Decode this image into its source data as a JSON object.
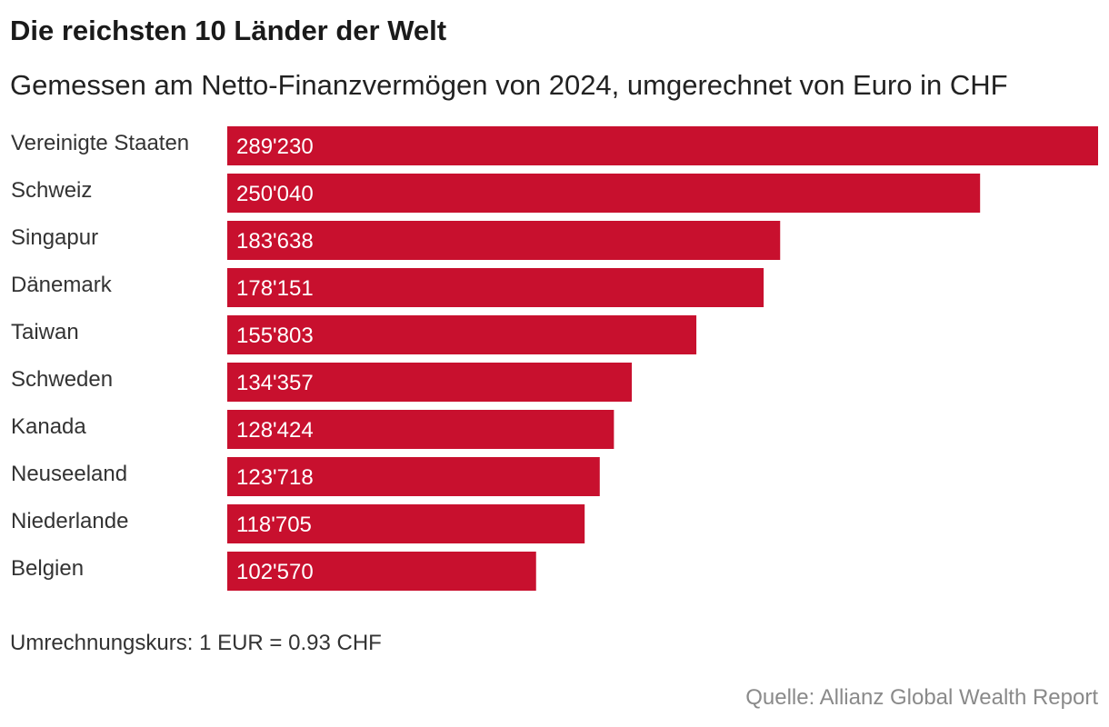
{
  "header": {
    "title": "Die reichsten 10 Länder der Welt",
    "subtitle": "Gemessen am Netto-Finanzvermögen von 2024, umgerechnet von Euro in CHF"
  },
  "footer": {
    "note": "Umrechnungskurs: 1 EUR = 0.93 CHF",
    "source": "Quelle: Allianz Global Wealth Report"
  },
  "colors": {
    "bar": "#c8102e"
  },
  "chart_data": {
    "type": "bar",
    "orientation": "horizontal",
    "title": "Die reichsten 10 Länder der Welt",
    "subtitle": "Gemessen am Netto-Finanzvermögen von 2024, umgerechnet von Euro in CHF",
    "xlabel": "",
    "ylabel": "",
    "grid": false,
    "xlim": [
      0,
      289230
    ],
    "categories": [
      "Vereinigte Staaten",
      "Schweiz",
      "Singapur",
      "Dänemark",
      "Taiwan",
      "Schweden",
      "Kanada",
      "Neuseeland",
      "Niederlande",
      "Belgien"
    ],
    "values": [
      289230,
      250040,
      183638,
      178151,
      155803,
      134357,
      128424,
      123718,
      118705,
      102570
    ],
    "value_labels": [
      "289'230",
      "250'040",
      "183'638",
      "178'151",
      "155'803",
      "134'357",
      "128'424",
      "123'718",
      "118'705",
      "102'570"
    ]
  }
}
